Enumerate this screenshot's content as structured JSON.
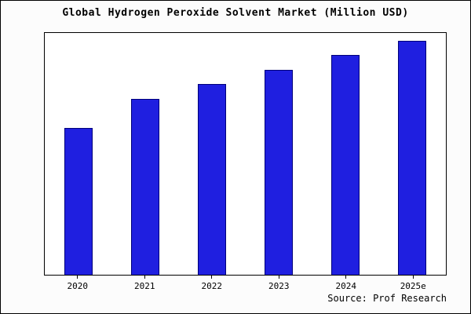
{
  "title": "Global Hydrogen Peroxide Solvent Market (Million USD)",
  "source": "Source: Prof Research",
  "colors": {
    "bar_fill": "#1f1fe0",
    "bar_border": "#00007a",
    "background": "#fcfcfc",
    "plot_background": "#ffffff"
  },
  "chart_data": {
    "type": "bar",
    "title": "Global Hydrogen Peroxide Solvent Market (Million USD)",
    "categories": [
      "2020",
      "2021",
      "2022",
      "2023",
      "2024",
      "2025e"
    ],
    "values": [
      188,
      225,
      245,
      263,
      282,
      300
    ],
    "value_note": "relative units estimated from bar pixel heights; no y-axis scale shown in chart",
    "xlabel": "",
    "ylabel": "",
    "ylim": [
      0,
      310
    ],
    "grid": false,
    "legend": false,
    "annotation": "Source: Prof Research"
  }
}
